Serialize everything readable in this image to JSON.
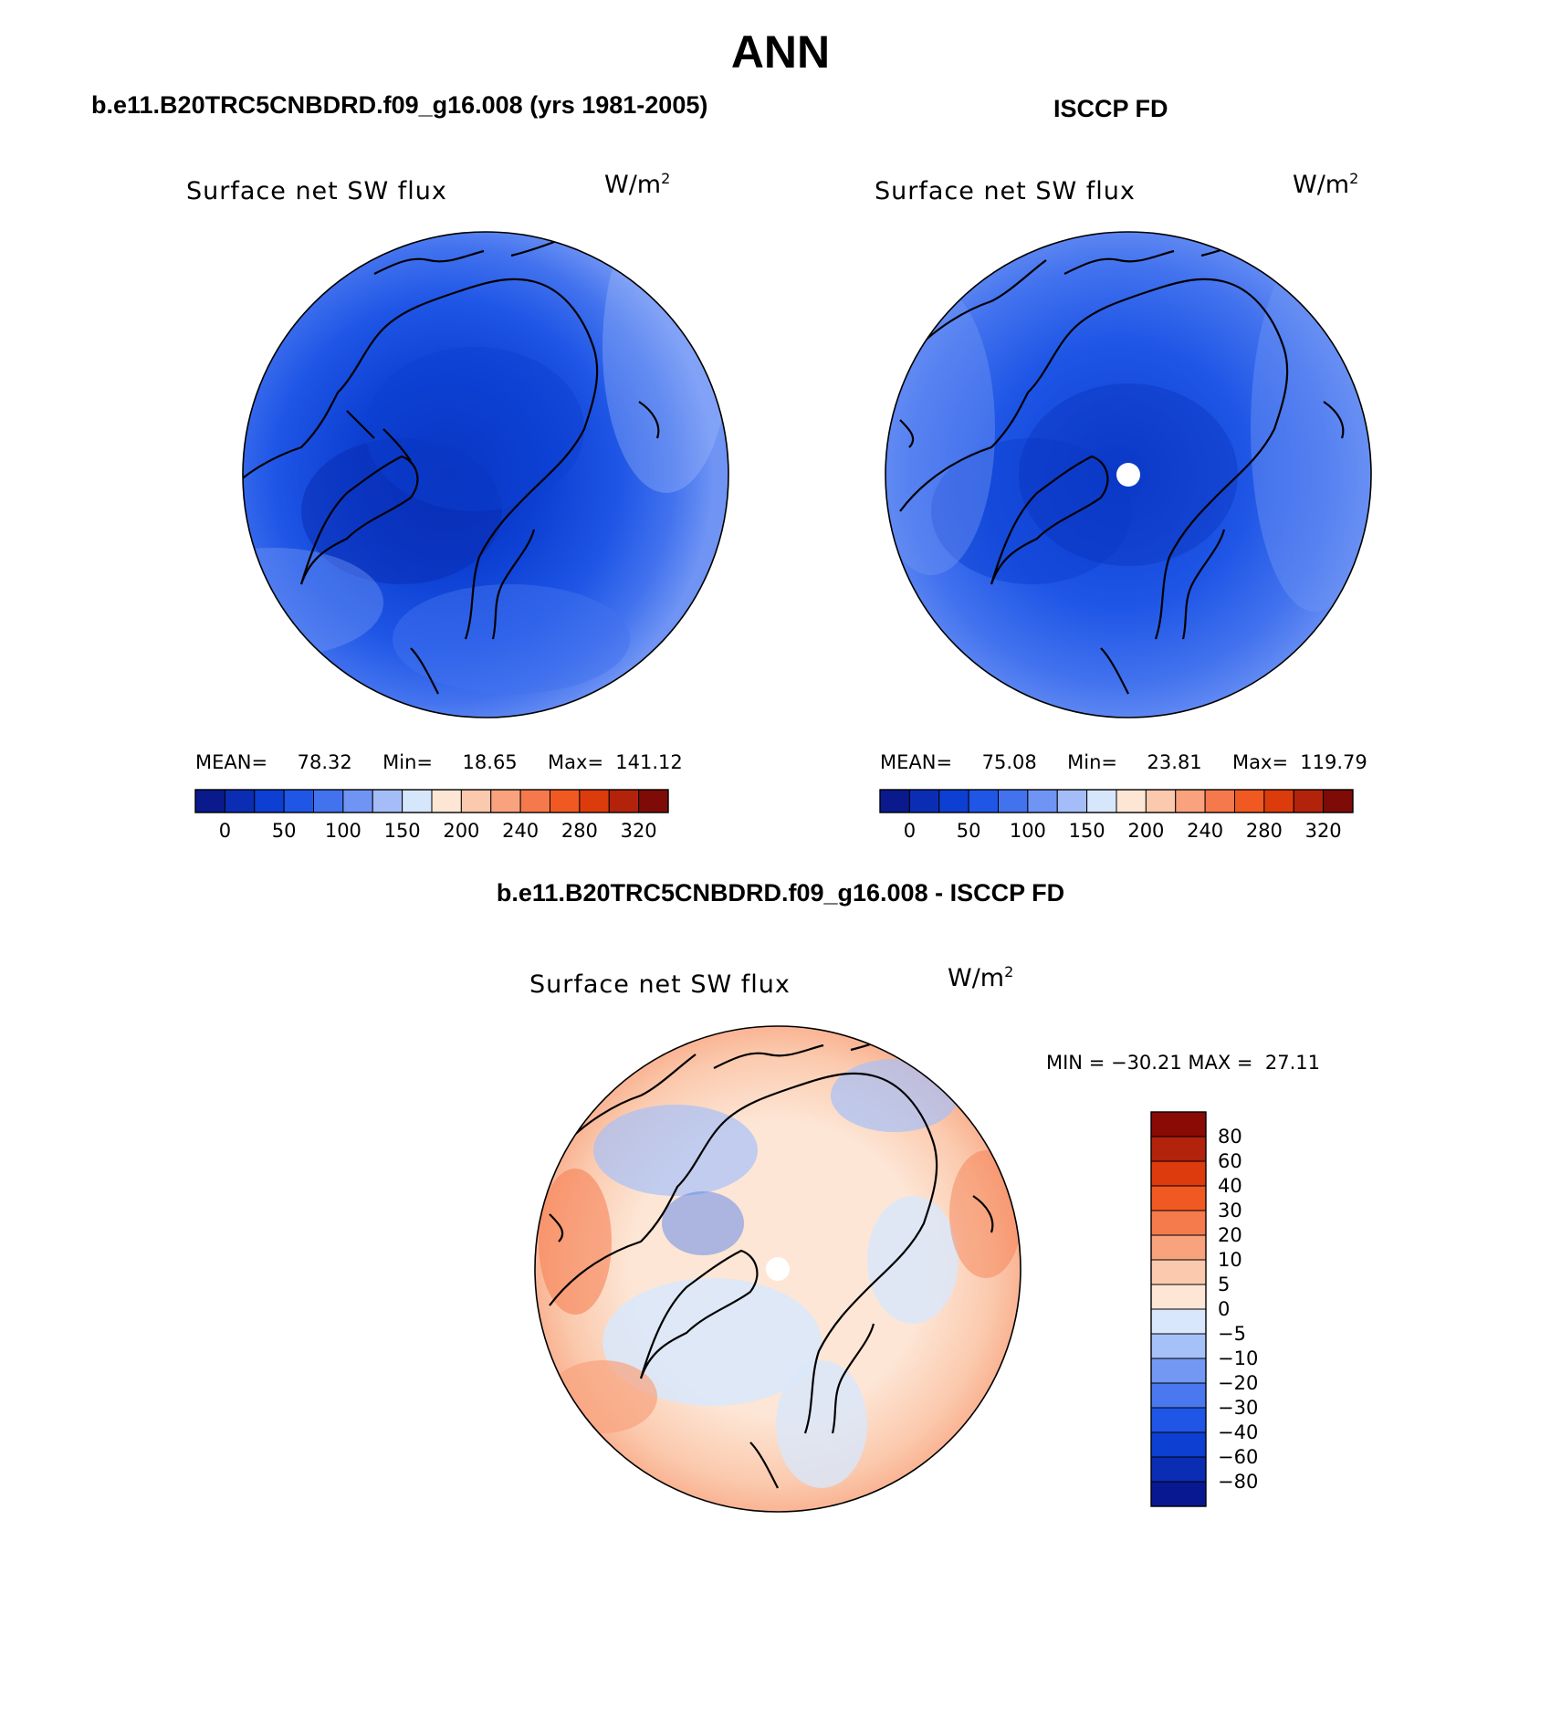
{
  "header": {
    "title": "ANN",
    "left_title": "b.e11.B20TRC5CNBDRD.f09_g16.008 (yrs 1981-2005)",
    "right_title": "ISCCP FD",
    "diff_title": "b.e11.B20TRC5CNBDRD.f09_g16.008 - ISCCP FD"
  },
  "panels": {
    "model": {
      "variable": "Surface net SW flux",
      "unit": "W/m",
      "unit_sup": "2",
      "mean_label": "MEAN=",
      "mean": "78.32",
      "min_label": "Min=",
      "min": "18.65",
      "max_label": "Max=",
      "max": "141.12"
    },
    "obs": {
      "variable": "Surface net SW flux",
      "unit": "W/m",
      "unit_sup": "2",
      "mean_label": "MEAN=",
      "mean": "75.08",
      "min_label": "Min=",
      "min": "23.81",
      "max_label": "Max=",
      "max": "119.79"
    },
    "diff": {
      "variable": "Surface net SW flux",
      "unit": "W/m",
      "unit_sup": "2",
      "minmax_text": "MIN = −30.21 MAX =  27.11"
    }
  },
  "colorbar_abs": {
    "colors": [
      "#0a1a8c",
      "#0a2db4",
      "#0c3fd2",
      "#1f56e6",
      "#4272ee",
      "#6f94f4",
      "#a4bdf8",
      "#d6e6fb",
      "#fde6d4",
      "#fbc9ad",
      "#f9a27d",
      "#f6794c",
      "#f05a22",
      "#dc3c0c",
      "#b3220a",
      "#7e0b07"
    ],
    "ticks": [
      "0",
      "50",
      "100",
      "150",
      "200",
      "240",
      "280",
      "320"
    ]
  },
  "colorbar_diff": {
    "colors_top_to_bottom": [
      "#8a0a05",
      "#b3220a",
      "#dd3a0e",
      "#f05a22",
      "#f57a4c",
      "#f8a27e",
      "#fbcaae",
      "#fde6d6",
      "#d8e7fb",
      "#a6c0f8",
      "#7398f3",
      "#4a78ee",
      "#1f56e6",
      "#0c3fd2",
      "#0a2db4",
      "#081890"
    ],
    "labels": [
      "80",
      "60",
      "40",
      "30",
      "20",
      "10",
      "5",
      "0",
      "−5",
      "−10",
      "−20",
      "−30",
      "−40",
      "−60",
      "−80"
    ]
  }
}
